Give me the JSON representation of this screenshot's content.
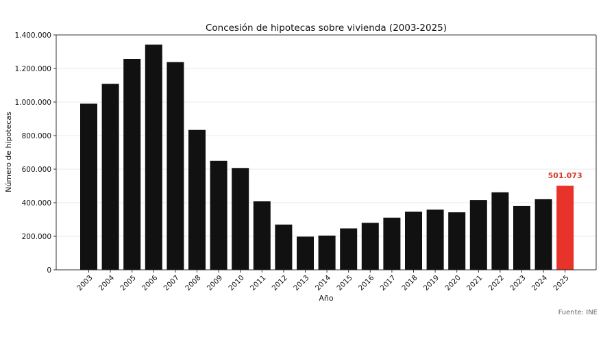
{
  "chart_data": {
    "type": "bar",
    "title": "Concesión de hipotecas sobre vivienda (2003-2025)",
    "xlabel": "Año",
    "ylabel": "Número de hipotecas",
    "ylim": [
      0,
      1400000
    ],
    "yticks": [
      0,
      200000,
      400000,
      600000,
      800000,
      1000000,
      1200000,
      1400000
    ],
    "ytick_labels": [
      "0",
      "200.000",
      "400.000",
      "600.000",
      "800.000",
      "1.000.000",
      "1.200.000",
      "1.400.000"
    ],
    "categories": [
      "2003",
      "2004",
      "2005",
      "2006",
      "2007",
      "2008",
      "2009",
      "2010",
      "2011",
      "2012",
      "2013",
      "2014",
      "2015",
      "2016",
      "2017",
      "2018",
      "2019",
      "2020",
      "2021",
      "2022",
      "2023",
      "2024",
      "2025"
    ],
    "values": [
      990000,
      1108000,
      1257000,
      1342000,
      1238000,
      834000,
      650000,
      607000,
      408000,
      270000,
      198000,
      204000,
      247000,
      280000,
      311000,
      347000,
      359000,
      343000,
      416000,
      462000,
      380000,
      421000,
      501073
    ],
    "highlight": {
      "category": "2025",
      "label": "501.073"
    },
    "grid": "y",
    "colors": {
      "bar": "#111111",
      "highlight": "#e8332a",
      "highlight_label": "#d63a2f",
      "grid": "#e8e8e8",
      "axis": "#333333"
    },
    "source": "Fuente: INE"
  }
}
